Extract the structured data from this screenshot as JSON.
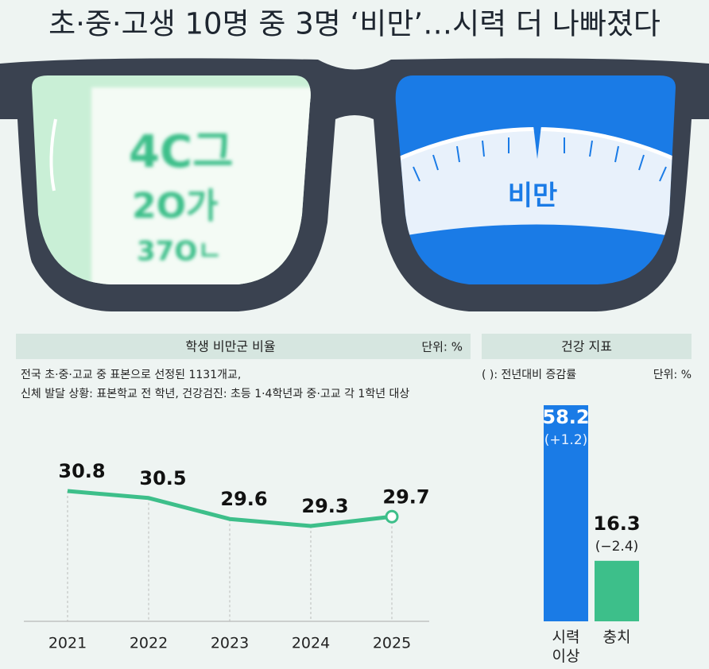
{
  "title": "초·중·고생 10명 중 3명 ‘비만’…시력 더 나빠졌다",
  "illustration": {
    "eye_chart": [
      "4C그",
      "2O가",
      "37Oㄴ"
    ],
    "scale_label": "비만"
  },
  "chart_data": [
    {
      "type": "line",
      "title": "학생 비만군 비율",
      "unit": "단위: %",
      "notes": [
        "전국 초·중·고교 중 표본으로 선정된 1131개교,",
        "신체 발달 상황: 표본학교 전 학년, 건강검진: 초등 1·4학년과 중·고교 각 1학년 대상"
      ],
      "categories": [
        "2021",
        "2022",
        "2023",
        "2024",
        "2025"
      ],
      "values": [
        30.8,
        30.5,
        29.6,
        29.3,
        29.7
      ],
      "color": "#3dbf8a"
    },
    {
      "type": "bar",
      "title": "건강 지표",
      "subtitle": "(  ): 전년대비 증감률",
      "unit": "단위: %",
      "categories": [
        "시력 이상",
        "충치"
      ],
      "values": [
        58.2,
        16.3
      ],
      "annotations": [
        "(+1.2)",
        "(−2.4)"
      ],
      "colors": [
        "#1a7be6",
        "#3dbf8a"
      ]
    }
  ]
}
